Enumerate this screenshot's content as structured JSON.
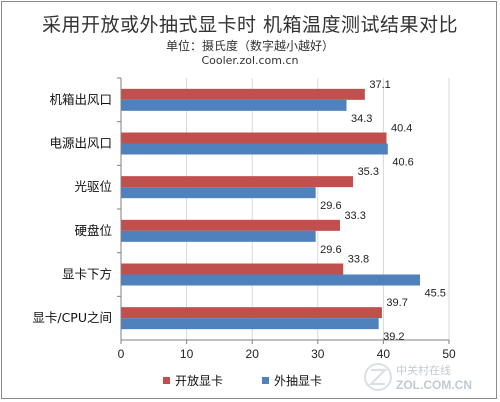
{
  "colors": {
    "series1": "#c0504d",
    "series2": "#4f81bd",
    "grid": "#d9d9d9",
    "axis": "#808080"
  },
  "chart_data": {
    "type": "bar",
    "orientation": "horizontal",
    "title": "采用开放或外抽式显卡时 机箱温度测试结果对比",
    "subtitle": "单位：摄氏度（数字越小越好）",
    "source": "Cooler.zol.com.cn",
    "categories": [
      "机箱出风口",
      "电源出风口",
      "光驱位",
      "硬盘位",
      "显卡下方",
      "显卡/CPU之间"
    ],
    "series": [
      {
        "name": "开放显卡",
        "values": [
          37.1,
          40.4,
          35.3,
          33.3,
          33.8,
          39.7
        ]
      },
      {
        "name": "外抽显卡",
        "values": [
          34.3,
          40.6,
          29.6,
          29.6,
          45.5,
          39.2
        ]
      }
    ],
    "xlim": [
      0,
      50
    ],
    "xticks": [
      "0",
      "10",
      "20",
      "30",
      "40",
      "50"
    ],
    "grid": true,
    "legend": "bottom"
  },
  "watermark": {
    "cn": "中关村在线",
    "en": "ZOL.COM.CN"
  }
}
